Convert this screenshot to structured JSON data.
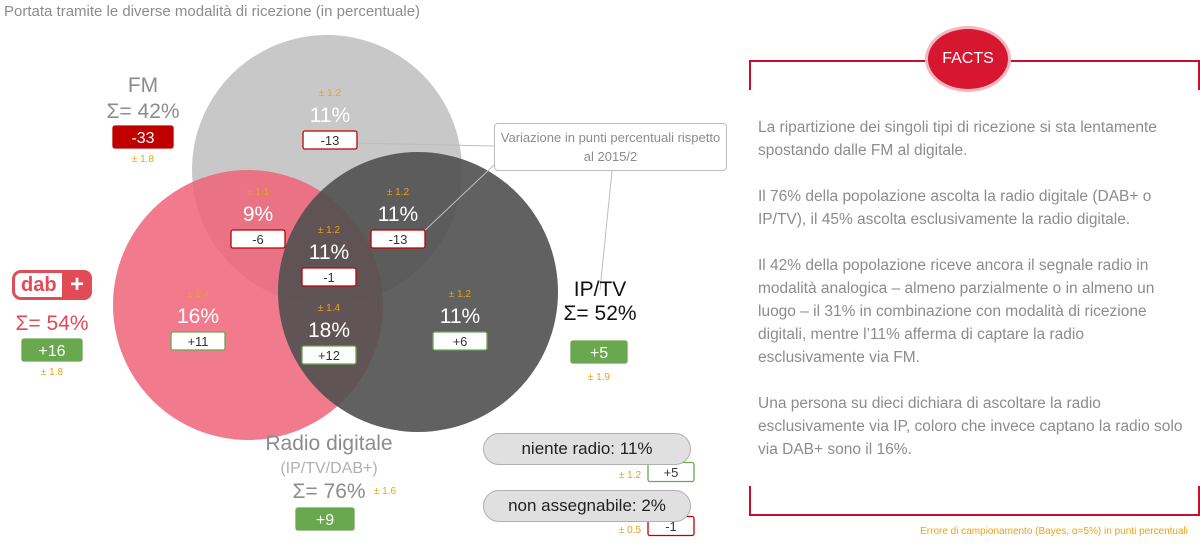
{
  "title": "Portata tramite le diverse modalità di ricezione (in percentuale)",
  "colors": {
    "fm": "#c8c8c8",
    "dab": "#ee6478",
    "ip": "#505050",
    "accent": "#c8102e",
    "positive": "#6aa84f",
    "error": "#e8a317"
  },
  "chart_data": {
    "type": "venn",
    "sets": [
      {
        "name": "FM",
        "total_label": "Σ= 42%",
        "total": 42,
        "change": "-33",
        "error": "± 1.8"
      },
      {
        "name": "dab+",
        "total_label": "Σ= 54%",
        "total": 54,
        "change": "+16",
        "error": "± 1.8"
      },
      {
        "name": "IP/TV",
        "total_label": "Σ= 52%",
        "total": 52,
        "change": "+5",
        "error": "± 1.9"
      },
      {
        "name": "Radio digitale",
        "sub": "(IP/TV/DAB+)",
        "total_label": "Σ= 76%",
        "total": 76,
        "change": "+9",
        "error": "± 1.6"
      }
    ],
    "regions": [
      {
        "key": "fm_only",
        "sets": [
          "FM"
        ],
        "value": "11%",
        "change": "-13",
        "error": "± 1.2"
      },
      {
        "key": "fm_dab",
        "sets": [
          "FM",
          "dab+"
        ],
        "value": "9%",
        "change": "-6",
        "error": "± 1.1"
      },
      {
        "key": "fm_ip",
        "sets": [
          "FM",
          "IP/TV"
        ],
        "value": "11%",
        "change": "-13",
        "error": "± 1.2"
      },
      {
        "key": "all_three",
        "sets": [
          "FM",
          "dab+",
          "IP/TV"
        ],
        "value": "11%",
        "change": "-1",
        "error": "± 1.2"
      },
      {
        "key": "dab_only",
        "sets": [
          "dab+"
        ],
        "value": "16%",
        "change": "+11",
        "error": "± 1.4"
      },
      {
        "key": "dab_ip",
        "sets": [
          "dab+",
          "IP/TV"
        ],
        "value": "18%",
        "change": "+12",
        "error": "± 1.4"
      },
      {
        "key": "ip_only",
        "sets": [
          "IP/TV"
        ],
        "value": "11%",
        "change": "+6",
        "error": "± 1.2"
      }
    ],
    "extra": [
      {
        "label": "niente radio: 11%",
        "change": "+5",
        "error": "± 1.2"
      },
      {
        "label": "non assegnabile: 2%",
        "change": "-1",
        "error": "± 0.5"
      }
    ]
  },
  "callout": "Variazione in punti percentuali rispetto al 2015/2",
  "facts": {
    "badge": "FACTS",
    "paragraphs": [
      "La ripartizione dei singoli tipi di ricezione si sta lentamente spostando dalle FM al digitale.",
      "Il 76% della popolazione ascolta la radio digitale (DAB+ o IP/TV), il 45% ascolta esclusivamente la radio digitale.",
      "Il 42% della popolazione riceve ancora il segnale radio in modalità analogica – almeno parzialmente o in almeno un luogo – il 31% in combinazione con modalità di ricezione digitali, mentre l’11% afferma di captare la radio esclusivamente via FM.",
      "Una persona su dieci dichiara di ascoltare la radio esclusivamente via IP, coloro che invece captano la radio solo via DAB+ sono il 16%."
    ],
    "note": "Errore di campionamento (Bayes, α=5%) in punti percentuali"
  },
  "logo": {
    "text": "dab",
    "plus": "+"
  }
}
